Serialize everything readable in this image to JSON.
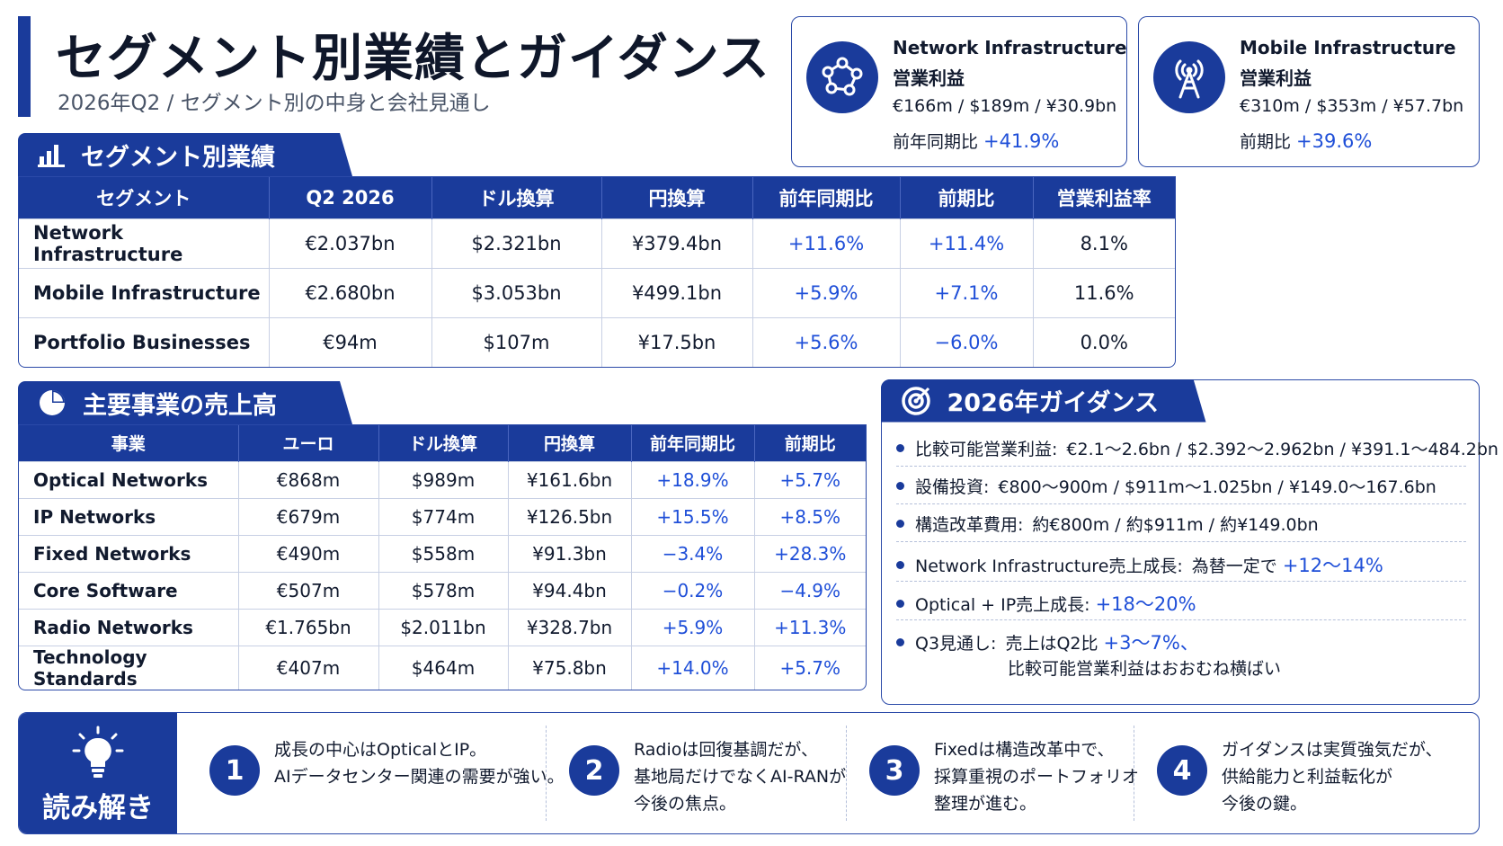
{
  "header": {
    "title": "セグメント別業績とガイダンス",
    "subtitle": "2026年Q2 / セグメント別の中身と会社見通し"
  },
  "kpis": [
    {
      "icon": "network-nodes-icon",
      "line1": "Network Infrastructure",
      "line2": "営業利益",
      "values": "€166m / $189m / ¥30.9bn",
      "change_label": "前年同期比",
      "change_value": "+41.9%"
    },
    {
      "icon": "radio-tower-icon",
      "line1": "Mobile Infrastructure",
      "line2": "営業利益",
      "values": "€310m / $353m / ¥57.7bn",
      "change_label": "前期比",
      "change_value": "+39.6%"
    }
  ],
  "segments": {
    "heading": "セグメント別業績",
    "columns": [
      "セグメント",
      "Q2 2026",
      "ドル換算",
      "円換算",
      "前年同期比",
      "前期比",
      "営業利益率"
    ],
    "rows": [
      [
        "Network Infrastructure",
        "€2.037bn",
        "$2.321bn",
        "¥379.4bn",
        "+11.6%",
        "+11.4%",
        "8.1%"
      ],
      [
        "Mobile Infrastructure",
        "€2.680bn",
        "$3.053bn",
        "¥499.1bn",
        "+5.9%",
        "+7.1%",
        "11.6%"
      ],
      [
        "Portfolio Businesses",
        "€94m",
        "$107m",
        "¥17.5bn",
        "+5.6%",
        "−6.0%",
        "0.0%"
      ]
    ]
  },
  "business": {
    "heading": "主要事業の売上高",
    "columns": [
      "事業",
      "ユーロ",
      "ドル換算",
      "円換算",
      "前年同期比",
      "前期比"
    ],
    "rows": [
      [
        "Optical Networks",
        "€868m",
        "$989m",
        "¥161.6bn",
        "+18.9%",
        "+5.7%"
      ],
      [
        "IP Networks",
        "€679m",
        "$774m",
        "¥126.5bn",
        "+15.5%",
        "+8.5%"
      ],
      [
        "Fixed Networks",
        "€490m",
        "$558m",
        "¥91.3bn",
        "−3.4%",
        "+28.3%"
      ],
      [
        "Core Software",
        "€507m",
        "$578m",
        "¥94.4bn",
        "−0.2%",
        "−4.9%"
      ],
      [
        "Radio Networks",
        "€1.765bn",
        "$2.011bn",
        "¥328.7bn",
        "+5.9%",
        "+11.3%"
      ],
      [
        "Technology Standards",
        "€407m",
        "$464m",
        "¥75.8bn",
        "+14.0%",
        "+5.7%"
      ]
    ]
  },
  "guidance": {
    "heading": "2026年ガイダンス",
    "items": [
      {
        "label": "比較可能営業利益:",
        "text": "€2.1～2.6bn / $2.392～2.962bn / ¥391.1～484.2bn",
        "highlight": ""
      },
      {
        "label": "設備投資:",
        "text": "€800～900m / $911m～1.025bn / ¥149.0～167.6bn",
        "highlight": ""
      },
      {
        "label": "構造改革費用:",
        "text": "約€800m / 約$911m / 約¥149.0bn",
        "highlight": ""
      },
      {
        "label": "Network Infrastructure売上成長:",
        "text": "為替一定で",
        "highlight": "+12～14%"
      },
      {
        "label": "Optical + IP売上成長:",
        "text": "",
        "highlight": "+18～20%"
      },
      {
        "label": "Q3見通し:",
        "text": "売上はQ2比",
        "highlight": "+3～7%、",
        "text2": "比較可能営業利益はおおむね横ばい"
      }
    ]
  },
  "insights": {
    "label": "読み解き",
    "items": [
      {
        "num": "1",
        "lines": [
          "成長の中心はOpticalとIP。",
          "AIデータセンター関連の需要が強い。"
        ]
      },
      {
        "num": "2",
        "lines": [
          "Radioは回復基調だが、",
          "基地局だけでなくAI-RANが",
          "今後の焦点。"
        ]
      },
      {
        "num": "3",
        "lines": [
          "Fixedは構造改革中で、",
          "採算重視のポートフォリオ",
          "整理が進む。"
        ]
      },
      {
        "num": "4",
        "lines": [
          "ガイダンスは実質強気だが、",
          "供給能力と利益転化が",
          "今後の鍵。"
        ]
      }
    ]
  },
  "colors": {
    "primary": "#1a3b9b",
    "accent": "#1f4fd8",
    "text": "#111a2e"
  }
}
